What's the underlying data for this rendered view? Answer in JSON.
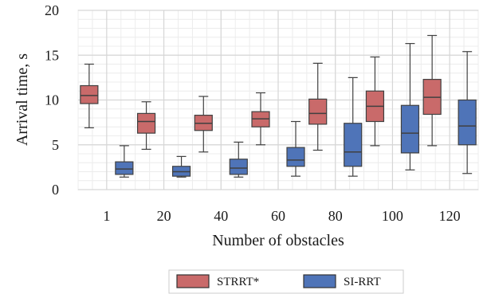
{
  "chart_data": {
    "type": "box",
    "xlabel": "Number of obstacles",
    "ylabel": "Arrival time, s",
    "ylim": [
      0,
      20
    ],
    "yticks": [
      0,
      5,
      10,
      15,
      20
    ],
    "categories": [
      "1",
      "20",
      "40",
      "60",
      "80",
      "100",
      "120"
    ],
    "grid": true,
    "legend_position": "bottom-center",
    "series": [
      {
        "name": "STRRT*",
        "color": "#c96a6a",
        "boxes": [
          {
            "whisker_low": 6.9,
            "q1": 9.6,
            "median": 10.5,
            "q3": 11.6,
            "whisker_high": 14.0
          },
          {
            "whisker_low": 4.5,
            "q1": 6.3,
            "median": 7.6,
            "q3": 8.5,
            "whisker_high": 9.8
          },
          {
            "whisker_low": 4.2,
            "q1": 6.6,
            "median": 7.4,
            "q3": 8.3,
            "whisker_high": 10.4
          },
          {
            "whisker_low": 5.0,
            "q1": 7.0,
            "median": 7.9,
            "q3": 8.7,
            "whisker_high": 10.8
          },
          {
            "whisker_low": 4.4,
            "q1": 7.3,
            "median": 8.5,
            "q3": 10.1,
            "whisker_high": 14.1
          },
          {
            "whisker_low": 4.9,
            "q1": 7.6,
            "median": 9.3,
            "q3": 11.0,
            "whisker_high": 14.8
          },
          {
            "whisker_low": 4.9,
            "q1": 8.4,
            "median": 10.3,
            "q3": 12.3,
            "whisker_high": 17.2
          }
        ]
      },
      {
        "name": "SI-RRT",
        "color": "#4f74b8",
        "boxes": [
          {
            "whisker_low": 1.4,
            "q1": 1.7,
            "median": 2.3,
            "q3": 3.1,
            "whisker_high": 4.9
          },
          {
            "whisker_low": 1.4,
            "q1": 1.5,
            "median": 2.0,
            "q3": 2.6,
            "whisker_high": 3.7
          },
          {
            "whisker_low": 1.4,
            "q1": 1.7,
            "median": 2.4,
            "q3": 3.4,
            "whisker_high": 5.3
          },
          {
            "whisker_low": 1.5,
            "q1": 2.6,
            "median": 3.3,
            "q3": 4.7,
            "whisker_high": 7.6
          },
          {
            "whisker_low": 1.5,
            "q1": 2.6,
            "median": 4.2,
            "q3": 7.4,
            "whisker_high": 12.5
          },
          {
            "whisker_low": 2.2,
            "q1": 4.1,
            "median": 6.3,
            "q3": 9.4,
            "whisker_high": 16.3
          },
          {
            "whisker_low": 1.8,
            "q1": 5.0,
            "median": 7.1,
            "q3": 10.0,
            "whisker_high": 15.4
          }
        ]
      }
    ]
  }
}
